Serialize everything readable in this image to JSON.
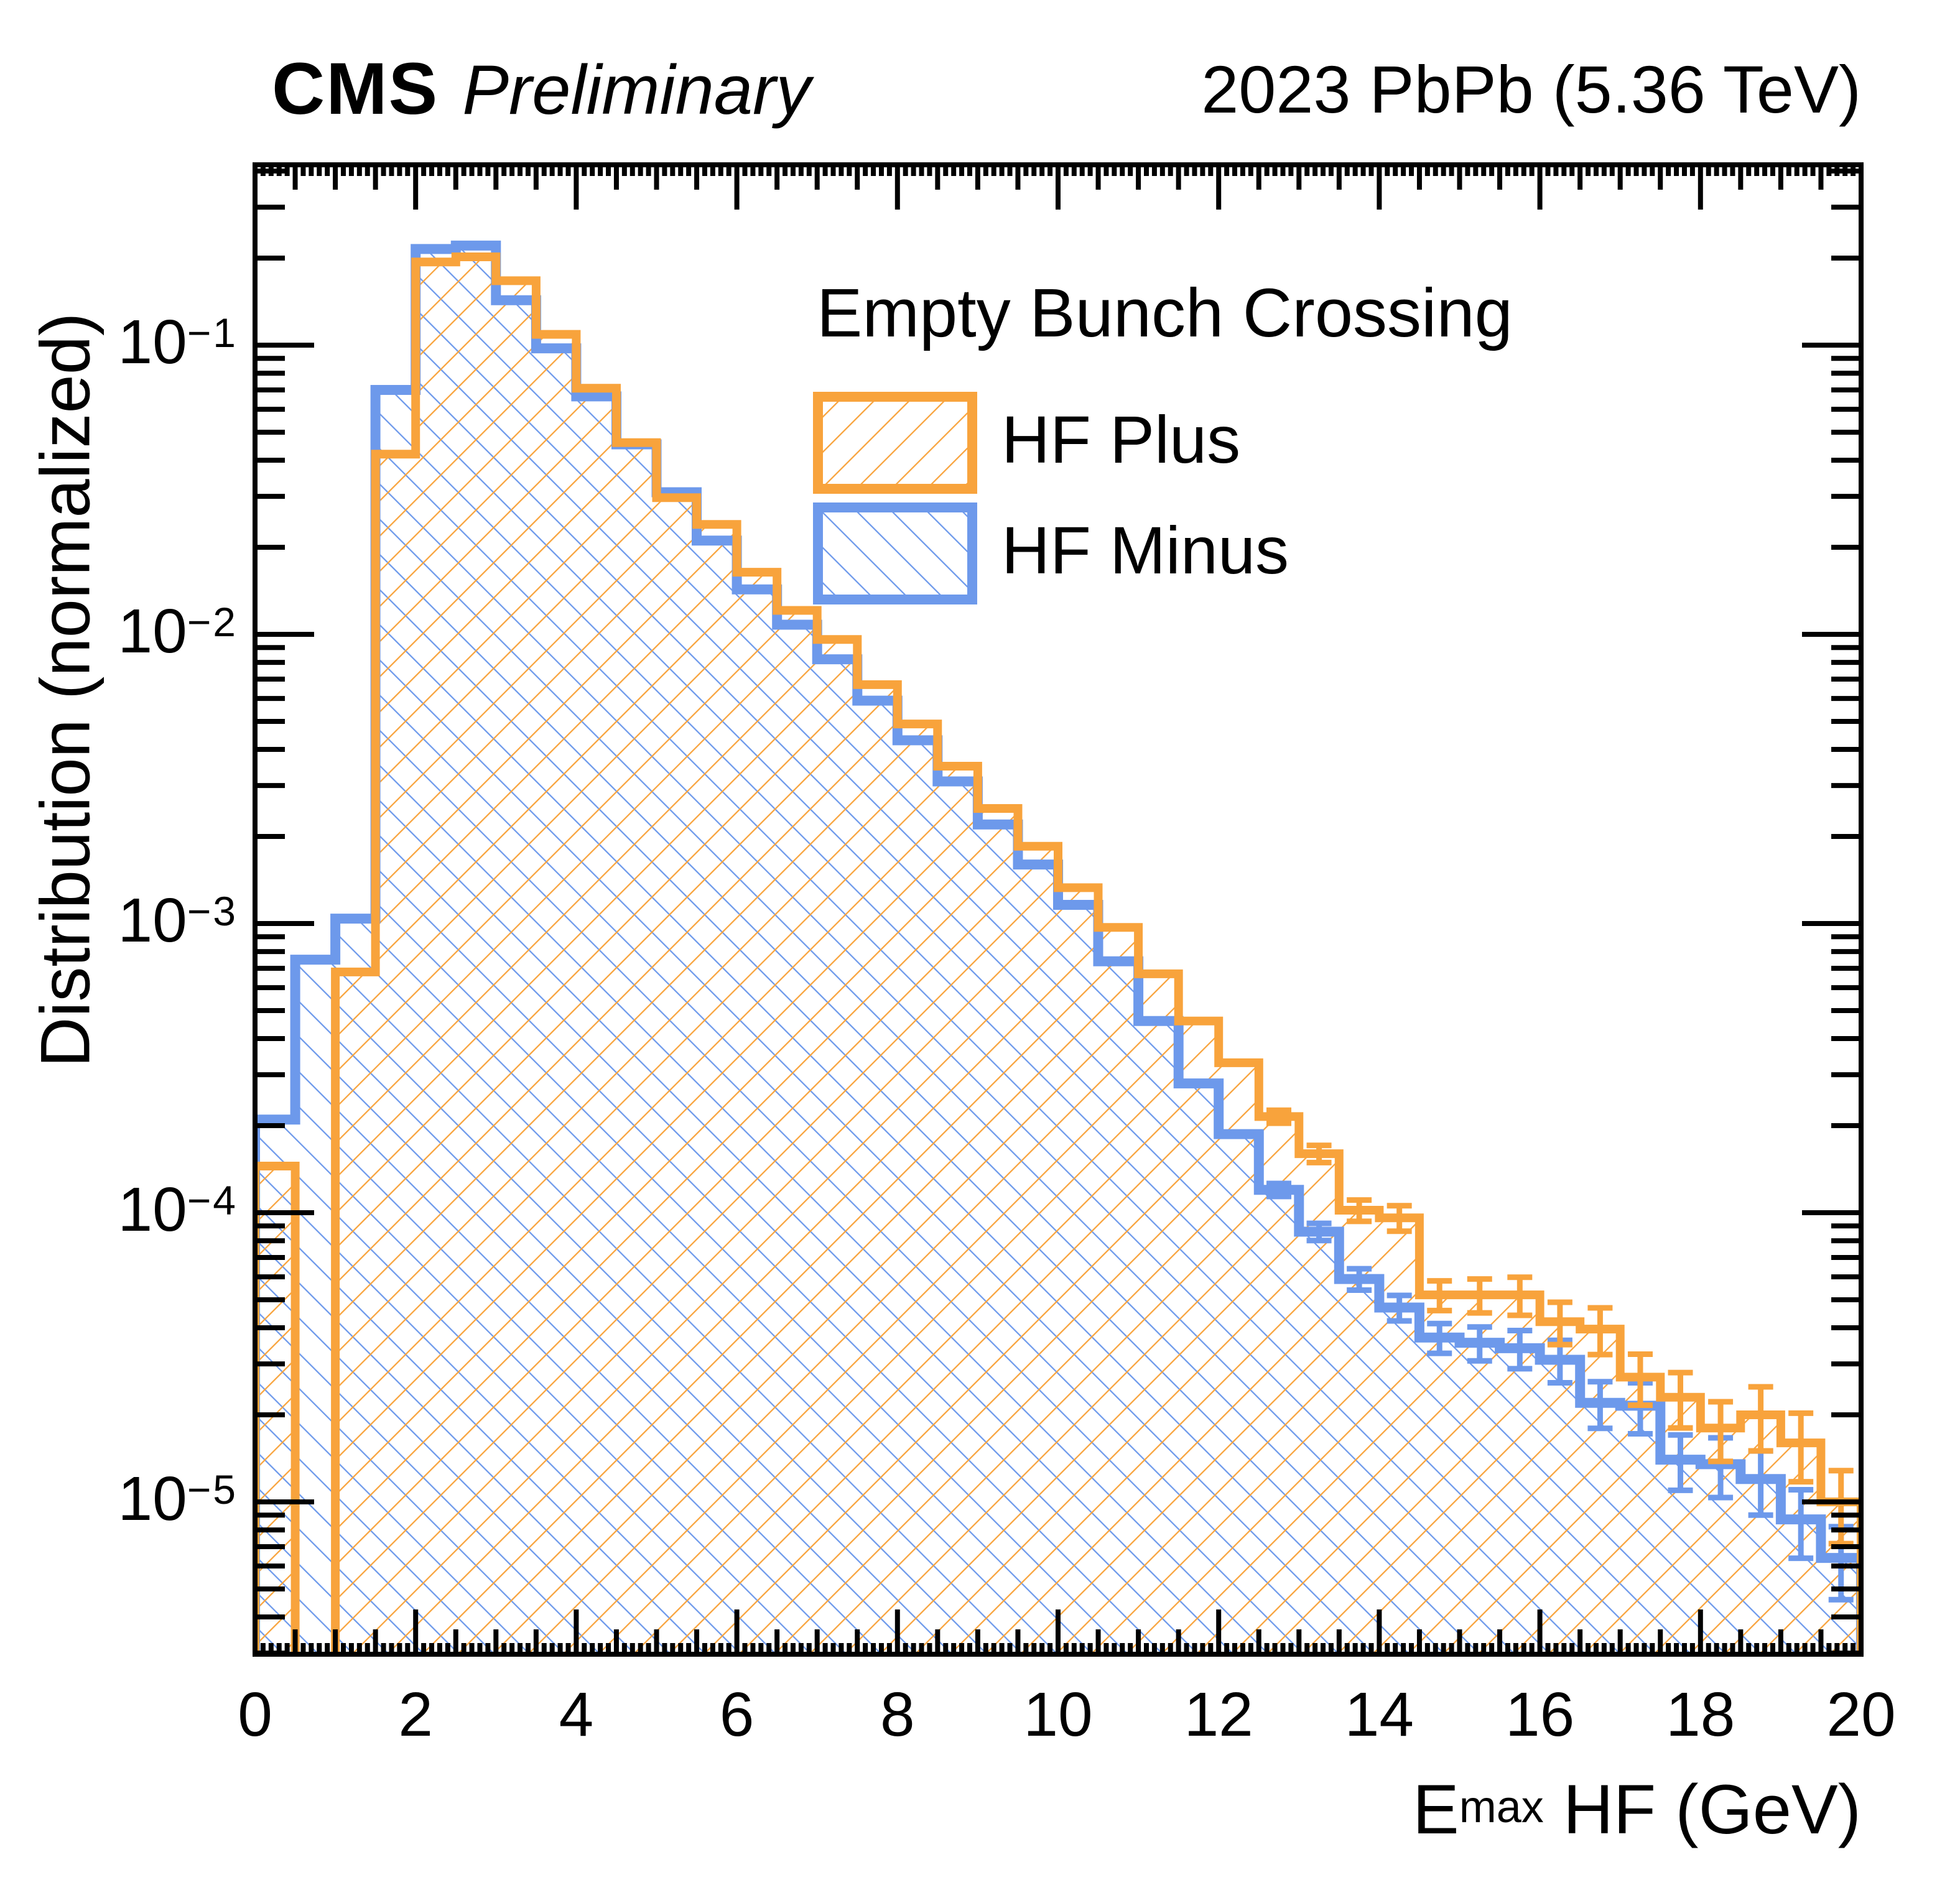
{
  "meta": {
    "cms": "CMS",
    "status": "Preliminary",
    "lumi": "2023 PbPb (5.36 TeV)"
  },
  "legend": {
    "header": "Empty Bunch Crossing",
    "entries": [
      {
        "label": "HF Plus",
        "color": "#F8A33C",
        "hatch": "/"
      },
      {
        "label": "HF Minus",
        "color": "#6D99EB",
        "hatch": "\\"
      }
    ]
  },
  "axes": {
    "x": {
      "title_base": "E",
      "title_sup": "max",
      "title_rest": " HF (GeV)",
      "range": [
        0,
        20
      ]
    },
    "y": {
      "title": "Distribution (normalized)",
      "scale": "log",
      "range": [
        2.97e-06,
        0.423
      ]
    }
  },
  "chart_data": {
    "type": "bar",
    "subtype": "step-histogram",
    "title": "CMS Preliminary 2023 PbPb (5.36 TeV)",
    "xlabel": "E^max HF (GeV)",
    "ylabel": "Distribution (normalized)",
    "yscale": "log",
    "xlim": [
      0,
      20
    ],
    "ylim": [
      2.97e-06,
      0.423
    ],
    "bin_width": 0.5,
    "x_start": 0,
    "n_bins": 40,
    "x_major_ticks": [
      0,
      2,
      4,
      6,
      8,
      10,
      12,
      14,
      16,
      18,
      20
    ],
    "y_decades": [
      -1,
      -2,
      -3,
      -4,
      -5
    ],
    "grid": false,
    "legend_position": "top-right-inside",
    "error_bars": "small tick-style errors visible for E > 12.5 GeV, growing toward the tail",
    "series": [
      {
        "name": "HF Plus",
        "color": "#F8A33C",
        "hatch": "/",
        "values": [
          0.000145,
          0,
          0.00068,
          0.042,
          0.194,
          0.202,
          0.167,
          0.109,
          0.071,
          0.046,
          0.0297,
          0.024,
          0.0164,
          0.0121,
          0.0096,
          0.0067,
          0.0049,
          0.0035,
          0.0025,
          0.00185,
          0.00133,
          0.00097,
          0.00067,
          0.00046,
          0.00033,
          0.000215,
          0.00016,
          0.000102,
          9.6e-05,
          5.2e-05,
          5.2e-05,
          5.2e-05,
          4.2e-05,
          3.96e-05,
          2.7e-05,
          2.3e-05,
          1.8e-05,
          2e-05,
          1.6e-05,
          1e-05
        ]
      },
      {
        "name": "HF Minus",
        "color": "#6D99EB",
        "hatch": "\\",
        "values": [
          0.00021,
          0.00075,
          0.00104,
          0.07,
          0.215,
          0.221,
          0.143,
          0.0975,
          0.0665,
          0.0454,
          0.031,
          0.0211,
          0.0143,
          0.0108,
          0.0082,
          0.0059,
          0.0043,
          0.0031,
          0.0022,
          0.0016,
          0.00116,
          0.00074,
          0.00046,
          0.00028,
          0.000187,
          0.00012,
          8.6e-05,
          5.9e-05,
          4.7e-05,
          3.7e-05,
          3.55e-05,
          3.4e-05,
          3.1e-05,
          2.2e-05,
          2.15e-05,
          1.4e-05,
          1.35e-05,
          1.2e-05,
          8.7e-06,
          6.4e-06
        ]
      }
    ]
  }
}
